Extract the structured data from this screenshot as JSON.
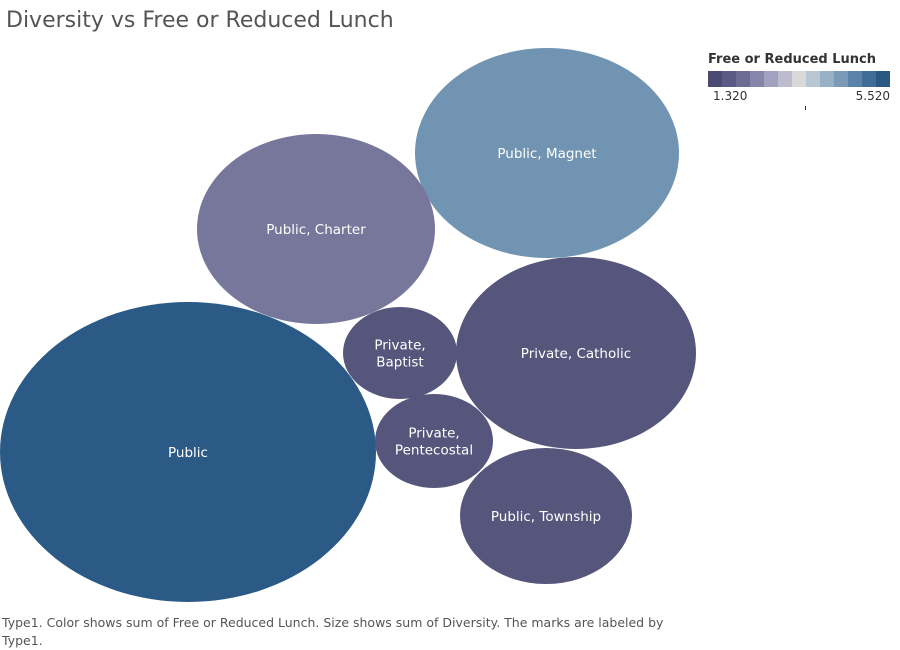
{
  "title": "Diversity vs Free or Reduced Lunch",
  "legend": {
    "title": "Free or Reduced Lunch",
    "min_label": "1.320",
    "max_label": "5.520",
    "colors": [
      "#4b4a70",
      "#5b5a86",
      "#6d6c93",
      "#8685aa",
      "#a2a1bf",
      "#bdbccf",
      "#d9d9d9",
      "#b7c6d3",
      "#97b0c6",
      "#7a9ab7",
      "#5b83a7",
      "#3f6d97",
      "#2b5883"
    ]
  },
  "caption": "Type1.  Color shows sum of Free or Reduced Lunch.  Size shows sum of Diversity.  The marks are labeled by Type1.",
  "chart_data": {
    "type": "bubble",
    "title": "Diversity vs Free or Reduced Lunch",
    "label_field": "Type1",
    "color_measure": "Free or Reduced Lunch",
    "size_measure": "Diversity",
    "color_range": [
      1.32,
      5.52
    ],
    "bubbles": [
      {
        "label": "Public",
        "color": "#2b5a86"
      },
      {
        "label": "Public, Magnet",
        "color": "#7194b2"
      },
      {
        "label": "Public, Charter",
        "color": "#77779b"
      },
      {
        "label": "Private, Catholic",
        "color": "#56557c"
      },
      {
        "label": "Public, Township",
        "color": "#56557c"
      },
      {
        "label": "Private, Baptist",
        "color": "#56557c"
      },
      {
        "label": "Private, Pentecostal",
        "color": "#56557c"
      }
    ]
  }
}
